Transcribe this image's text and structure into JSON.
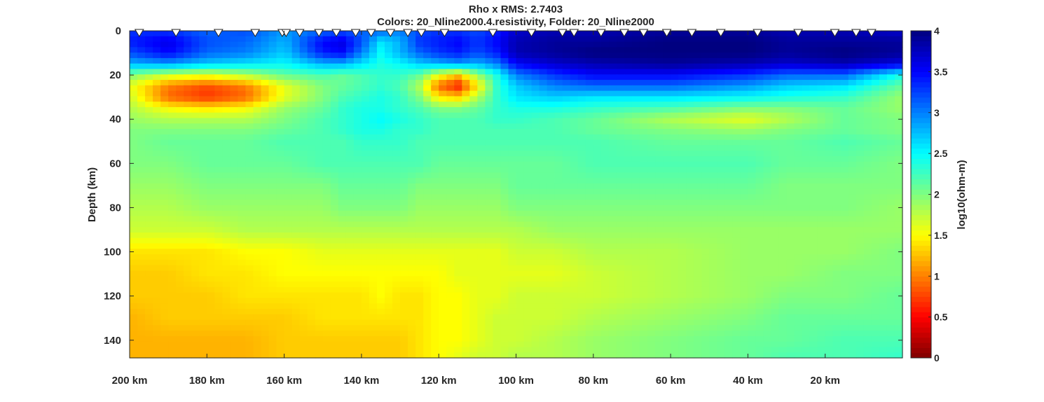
{
  "chart_data": {
    "type": "heatmap",
    "title_line1": "Rho x    RMS: 2.7403",
    "title_line2": "Colors: 20_Nline2000.4.resistivity, Folder: 20_Nline2000",
    "ylabel": "Depth (km)",
    "colorbar_label": "log10(ohm-m)",
    "colormap": "jet (reversed: red = low, dark blue = high)",
    "xlim": [
      200,
      0
    ],
    "ylim": [
      0,
      148
    ],
    "y_reversed": true,
    "clim": [
      0,
      4
    ],
    "x_tick_values": [
      200,
      180,
      160,
      140,
      120,
      100,
      80,
      60,
      40,
      20
    ],
    "x_tick_labels": [
      "200 km",
      "180 km",
      "160 km",
      "140 km",
      "120 km",
      "100 km",
      "80 km",
      "60 km",
      "40 km",
      "20 km"
    ],
    "y_tick_values": [
      0,
      20,
      40,
      60,
      80,
      100,
      120,
      140
    ],
    "y_tick_labels": [
      "0",
      "20",
      "40",
      "60",
      "80",
      "100",
      "120",
      "140"
    ],
    "colorbar_tick_values": [
      0,
      0.5,
      1,
      1.5,
      2,
      2.5,
      3,
      3.5,
      4
    ],
    "colorbar_tick_labels": [
      "0",
      "0.5",
      "1",
      "1.5",
      "2",
      "2.5",
      "3",
      "3.5",
      "4"
    ],
    "stations_km": [
      197.5,
      188,
      177,
      167.5,
      160.5,
      159.5,
      156,
      151,
      146.5,
      141.5,
      137.5,
      132.5,
      128,
      124.5,
      118.5,
      106,
      96,
      88,
      85,
      78,
      72,
      67,
      61,
      54.5,
      47,
      37.5,
      27,
      17.5,
      12,
      8
    ],
    "depth_km": [
      0,
      5,
      10,
      15,
      20,
      25,
      30,
      35,
      40,
      45,
      50,
      60,
      70,
      80,
      90,
      100,
      110,
      120,
      130,
      140,
      148
    ],
    "resistivity_log10": [
      {
        "depth_km": 0,
        "values": [
          3.3,
          3.3,
          3.1,
          3.2,
          2.9,
          3.1,
          3.2,
          3.1,
          3.1,
          3.0,
          3.2,
          3.3,
          3.3,
          3.2,
          3.4,
          3.7,
          3.8,
          3.8,
          3.9,
          3.9,
          3.8,
          3.8,
          3.7
        ]
      },
      {
        "depth_km": 5,
        "values": [
          3.4,
          3.6,
          3.2,
          3.1,
          2.8,
          3.5,
          3.6,
          3.2,
          2.6,
          2.8,
          3.3,
          3.4,
          3.5,
          3.3,
          3.5,
          3.8,
          3.9,
          3.9,
          4.0,
          4.0,
          3.9,
          3.9,
          3.9
        ]
      },
      {
        "depth_km": 10,
        "values": [
          3.2,
          3.5,
          3.1,
          3.0,
          2.7,
          3.4,
          3.5,
          3.0,
          2.5,
          2.8,
          3.1,
          3.3,
          3.4,
          3.2,
          3.4,
          3.8,
          3.9,
          4.0,
          4.0,
          4.0,
          3.9,
          4.0,
          3.9
        ]
      },
      {
        "depth_km": 15,
        "values": [
          2.8,
          2.9,
          2.7,
          2.6,
          2.5,
          2.8,
          2.8,
          2.6,
          2.4,
          2.5,
          2.7,
          2.8,
          2.9,
          2.8,
          3.0,
          3.5,
          3.7,
          3.8,
          3.9,
          3.8,
          3.7,
          3.8,
          3.6
        ]
      },
      {
        "depth_km": 20,
        "values": [
          2.0,
          1.7,
          1.6,
          1.8,
          2.1,
          2.2,
          2.1,
          2.2,
          2.3,
          2.3,
          2.1,
          1.6,
          1.3,
          1.9,
          2.4,
          3.0,
          3.3,
          3.5,
          3.5,
          3.3,
          3.1,
          3.1,
          2.4
        ]
      },
      {
        "depth_km": 25,
        "values": [
          1.6,
          1.0,
          0.8,
          1.0,
          1.6,
          2.0,
          2.1,
          2.2,
          2.3,
          2.2,
          1.8,
          0.9,
          0.6,
          1.4,
          2.3,
          2.7,
          3.0,
          3.1,
          3.1,
          2.9,
          2.7,
          2.6,
          2.1
        ]
      },
      {
        "depth_km": 30,
        "values": [
          1.7,
          0.9,
          0.7,
          0.9,
          1.6,
          2.0,
          2.2,
          2.3,
          2.4,
          2.3,
          2.0,
          1.4,
          1.3,
          1.8,
          2.3,
          2.6,
          2.7,
          2.6,
          2.6,
          2.5,
          2.4,
          2.3,
          1.9
        ]
      },
      {
        "depth_km": 35,
        "values": [
          1.8,
          1.5,
          1.4,
          1.5,
          1.9,
          2.1,
          2.3,
          2.4,
          2.4,
          2.3,
          2.2,
          2.0,
          2.0,
          2.1,
          2.3,
          2.4,
          2.4,
          2.3,
          2.2,
          2.0,
          2.0,
          2.1,
          1.9
        ]
      },
      {
        "depth_km": 40,
        "values": [
          1.9,
          1.8,
          1.8,
          1.8,
          2.0,
          2.2,
          2.3,
          2.4,
          2.5,
          2.4,
          2.3,
          2.2,
          2.2,
          2.2,
          2.3,
          2.3,
          2.2,
          2.1,
          1.8,
          1.6,
          1.8,
          2.1,
          2.0
        ]
      },
      {
        "depth_km": 45,
        "values": [
          2.0,
          2.0,
          2.0,
          2.0,
          2.1,
          2.2,
          2.3,
          2.4,
          2.4,
          2.3,
          2.3,
          2.2,
          2.2,
          2.2,
          2.2,
          2.2,
          2.2,
          2.1,
          2.0,
          1.9,
          2.0,
          2.1,
          2.0
        ]
      },
      {
        "depth_km": 50,
        "values": [
          2.0,
          2.1,
          2.1,
          2.1,
          2.2,
          2.2,
          2.2,
          2.3,
          2.3,
          2.3,
          2.2,
          2.2,
          2.2,
          2.2,
          2.2,
          2.2,
          2.2,
          2.2,
          2.1,
          2.1,
          2.1,
          2.2,
          2.1
        ]
      },
      {
        "depth_km": 60,
        "values": [
          2.0,
          2.0,
          2.1,
          2.1,
          2.1,
          2.2,
          2.2,
          2.2,
          2.2,
          2.2,
          2.2,
          2.1,
          2.1,
          2.1,
          2.1,
          2.1,
          2.1,
          2.2,
          2.2,
          2.2,
          2.1,
          2.1,
          2.0
        ]
      },
      {
        "depth_km": 70,
        "values": [
          1.9,
          1.9,
          2.0,
          2.0,
          2.0,
          2.0,
          2.1,
          2.1,
          2.1,
          2.1,
          2.0,
          2.0,
          2.0,
          2.0,
          2.0,
          2.1,
          2.1,
          2.1,
          2.1,
          2.1,
          2.0,
          2.0,
          2.0
        ]
      },
      {
        "depth_km": 80,
        "values": [
          1.8,
          1.8,
          1.9,
          1.9,
          1.9,
          1.9,
          2.0,
          2.0,
          2.0,
          2.0,
          1.9,
          1.9,
          1.9,
          1.9,
          1.9,
          2.0,
          2.0,
          2.0,
          2.0,
          2.0,
          2.0,
          2.0,
          1.9
        ]
      },
      {
        "depth_km": 90,
        "values": [
          1.7,
          1.7,
          1.7,
          1.8,
          1.8,
          1.8,
          1.8,
          1.8,
          1.8,
          1.8,
          1.8,
          1.8,
          1.8,
          1.8,
          1.8,
          1.8,
          1.9,
          1.9,
          1.9,
          1.9,
          1.9,
          1.9,
          1.9
        ]
      },
      {
        "depth_km": 100,
        "values": [
          1.4,
          1.4,
          1.4,
          1.5,
          1.5,
          1.6,
          1.6,
          1.6,
          1.6,
          1.6,
          1.6,
          1.6,
          1.6,
          1.6,
          1.6,
          1.7,
          1.7,
          1.8,
          1.8,
          1.9,
          1.9,
          1.9,
          2.0
        ]
      },
      {
        "depth_km": 110,
        "values": [
          1.3,
          1.3,
          1.4,
          1.4,
          1.5,
          1.5,
          1.5,
          1.5,
          1.5,
          1.5,
          1.5,
          1.5,
          1.6,
          1.6,
          1.6,
          1.6,
          1.6,
          1.7,
          1.8,
          1.9,
          1.9,
          2.0,
          2.0
        ]
      },
      {
        "depth_km": 120,
        "values": [
          1.3,
          1.3,
          1.3,
          1.4,
          1.4,
          1.4,
          1.4,
          1.4,
          1.5,
          1.4,
          1.4,
          1.5,
          1.5,
          1.6,
          1.6,
          1.7,
          1.7,
          1.7,
          1.8,
          1.9,
          2.0,
          2.0,
          2.1
        ]
      },
      {
        "depth_km": 130,
        "values": [
          1.2,
          1.3,
          1.3,
          1.3,
          1.3,
          1.4,
          1.4,
          1.4,
          1.4,
          1.4,
          1.4,
          1.5,
          1.5,
          1.6,
          1.7,
          1.7,
          1.7,
          1.8,
          1.9,
          2.0,
          2.1,
          2.1,
          2.1
        ]
      },
      {
        "depth_km": 140,
        "values": [
          1.2,
          1.2,
          1.2,
          1.2,
          1.3,
          1.3,
          1.3,
          1.3,
          1.3,
          1.3,
          1.4,
          1.5,
          1.5,
          1.6,
          1.7,
          1.7,
          1.8,
          1.9,
          2.0,
          2.1,
          2.1,
          2.2,
          2.2
        ]
      },
      {
        "depth_km": 148,
        "values": [
          1.2,
          1.2,
          1.2,
          1.2,
          1.3,
          1.3,
          1.3,
          1.3,
          1.3,
          1.3,
          1.4,
          1.5,
          1.6,
          1.7,
          1.7,
          1.8,
          1.8,
          1.9,
          2.0,
          2.1,
          2.2,
          2.2,
          2.3
        ]
      }
    ],
    "distance_km_columns": [
      200,
      190,
      180,
      170,
      160,
      150,
      145,
      140,
      135,
      130,
      125,
      120,
      115,
      110,
      105,
      100,
      90,
      80,
      60,
      40,
      30,
      15,
      0
    ]
  }
}
